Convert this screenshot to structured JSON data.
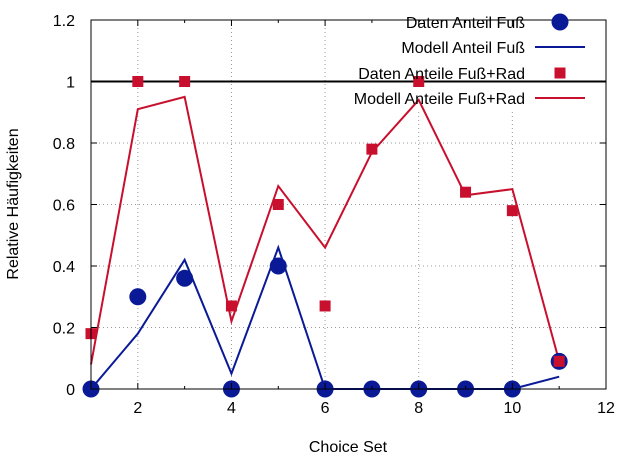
{
  "chart_data": {
    "type": "scatter",
    "title": "",
    "xlabel": "Choice Set",
    "ylabel": "Relative Häufigkeiten",
    "xlim": [
      1,
      12
    ],
    "ylim": [
      0,
      1.2
    ],
    "xticks": [
      2,
      4,
      6,
      8,
      10,
      12
    ],
    "yticks": [
      0,
      0.2,
      0.4,
      0.6,
      0.8,
      1,
      1.2
    ],
    "xtick_labels": [
      "2",
      "4",
      "6",
      "8",
      "10",
      "12"
    ],
    "ytick_labels": [
      "0",
      "0.2",
      "0.4",
      "0.6",
      "0.8",
      "1",
      "1.2"
    ],
    "grid": true,
    "reference_line": 1,
    "legend_position": "top-right",
    "series": [
      {
        "name": "Daten Anteil Fuß",
        "kind": "points",
        "marker": "circle",
        "color": "#0a1a96",
        "x": [
          1,
          2,
          3,
          4,
          5,
          6,
          7,
          8,
          9,
          10,
          11
        ],
        "y": [
          0,
          0.3,
          0.36,
          0,
          0.4,
          0,
          0,
          0,
          0,
          0,
          0.09
        ]
      },
      {
        "name": "Modell Anteil Fuß",
        "kind": "line",
        "color": "#0a1a96",
        "x": [
          1,
          2,
          3,
          4,
          5,
          6,
          7,
          8,
          9,
          10,
          11
        ],
        "y": [
          0,
          0.18,
          0.42,
          0.05,
          0.46,
          0,
          0,
          0,
          0,
          0,
          0.04
        ]
      },
      {
        "name": "Daten Anteile Fuß+Rad",
        "kind": "points",
        "marker": "square",
        "color": "#c8102e",
        "x": [
          1,
          2,
          3,
          4,
          5,
          6,
          7,
          8,
          9,
          10,
          11
        ],
        "y": [
          0.18,
          1,
          1,
          0.27,
          0.6,
          0.27,
          0.78,
          1,
          0.64,
          0.58,
          0.09
        ]
      },
      {
        "name": "Modell Anteile Fuß+Rad",
        "kind": "line",
        "color": "#c8102e",
        "x": [
          1,
          2,
          3,
          4,
          5,
          6,
          7,
          8,
          9,
          10,
          11
        ],
        "y": [
          0.08,
          0.91,
          0.95,
          0.22,
          0.66,
          0.46,
          0.77,
          0.94,
          0.63,
          0.65,
          0.09
        ]
      }
    ]
  }
}
